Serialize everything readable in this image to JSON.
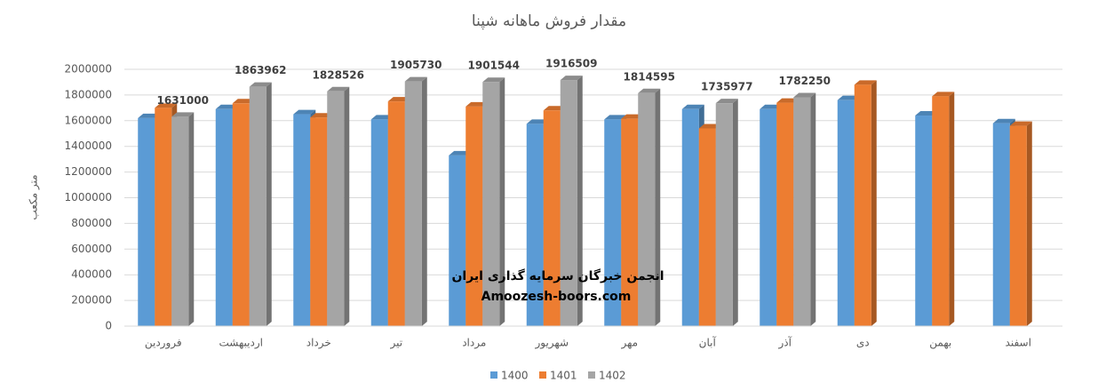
{
  "chart_data": {
    "type": "bar3d",
    "title": "مقدار فروش ماهانه شپنا",
    "y_label": "متر مکعب",
    "annotations": [
      "انجمن خبرگان سرمایه گذاری ایران",
      "Amoozesh-boors.com"
    ],
    "categories": [
      "فروردین",
      "اردیبهشت",
      "خرداد",
      "تیر",
      "مرداد",
      "شهریور",
      "مهر",
      "آبان",
      "آذر",
      "دی",
      "بهمن",
      "اسفند"
    ],
    "series": [
      {
        "name": "1400",
        "color": "#5b9bd5",
        "values": [
          1620000,
          1690000,
          1650000,
          1610000,
          1330000,
          1575000,
          1610000,
          1690000,
          1690000,
          1760000,
          1640000,
          1580000
        ]
      },
      {
        "name": "1401",
        "color": "#ed7d31",
        "values": [
          1700000,
          1735000,
          1625000,
          1750000,
          1710000,
          1680000,
          1615000,
          1540000,
          1740000,
          1880000,
          1790000,
          1560000
        ]
      },
      {
        "name": "1402",
        "color": "#a5a5a5",
        "values": [
          1631000,
          1863962,
          1828526,
          1905730,
          1901544,
          1916509,
          1814595,
          1735977,
          1782250,
          null,
          null,
          null
        ],
        "data_labels": true
      }
    ],
    "ylim": [
      0,
      2000000
    ],
    "yticks": [
      0,
      200000,
      400000,
      600000,
      800000,
      1000000,
      1200000,
      1400000,
      1600000,
      1800000,
      2000000
    ],
    "grid": true,
    "legend": "bottom"
  }
}
